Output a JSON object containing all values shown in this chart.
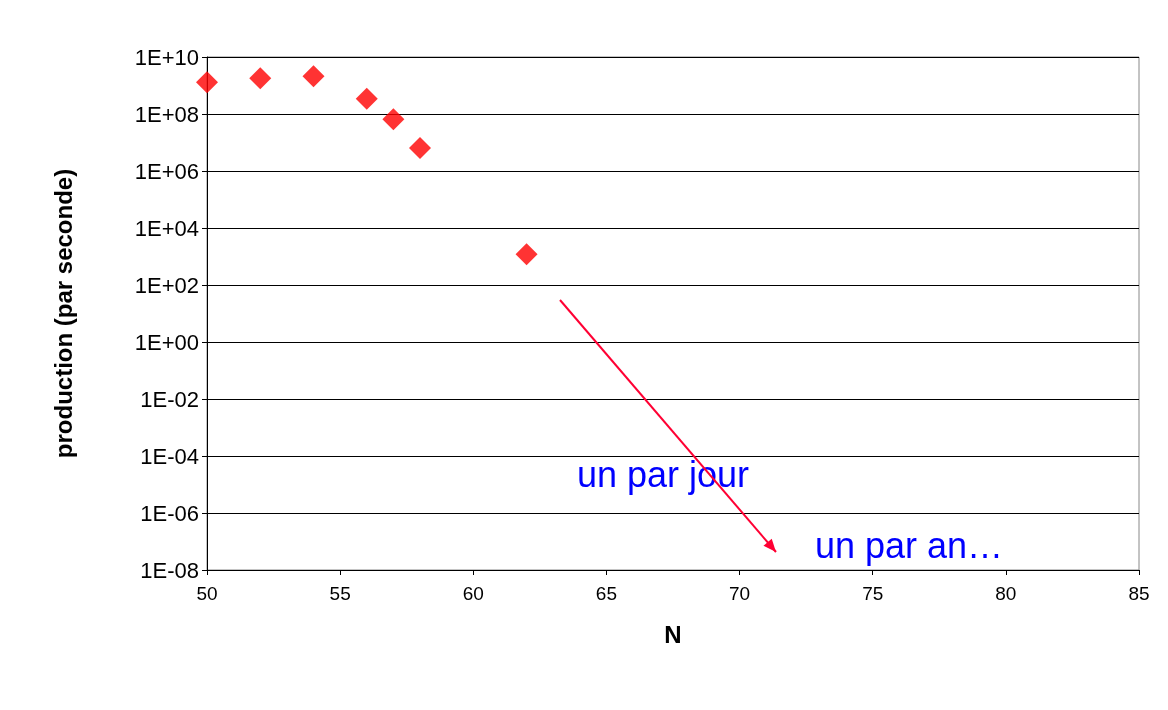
{
  "chart_data": {
    "type": "scatter",
    "xlabel": "N",
    "ylabel": "production (par seconde)",
    "x": [
      50,
      52,
      54,
      56,
      57,
      58,
      62
    ],
    "series": [
      {
        "color": "#ff0000",
        "values": [
          1300000000.0,
          1800000000.0,
          2100000000.0,
          340000000.0,
          66000000.0,
          6400000.0,
          1200.0
        ]
      }
    ],
    "marker": "diamond",
    "log": "y",
    "grid": "y",
    "xlim": [
      50,
      85
    ],
    "xticks": [
      50,
      55,
      60,
      65,
      70,
      75,
      80,
      85
    ],
    "ylim": [
      1e-08,
      10000000000.0
    ],
    "yticks": [
      {
        "value": 10000000000.0,
        "label": "1E+10"
      },
      {
        "value": 100000000.0,
        "label": "1E+08"
      },
      {
        "value": 1000000.0,
        "label": "1E+06"
      },
      {
        "value": 10000.0,
        "label": "1E+04"
      },
      {
        "value": 100.0,
        "label": "1E+02"
      },
      {
        "value": 1,
        "label": "1E+00"
      },
      {
        "value": 0.01,
        "label": "1E-02"
      },
      {
        "value": 0.0001,
        "label": "1E-04"
      },
      {
        "value": 1e-06,
        "label": "1E-06"
      },
      {
        "value": 1e-08,
        "label": "1E-08"
      }
    ],
    "annotations": [
      "un par jour",
      "un par an…"
    ]
  }
}
